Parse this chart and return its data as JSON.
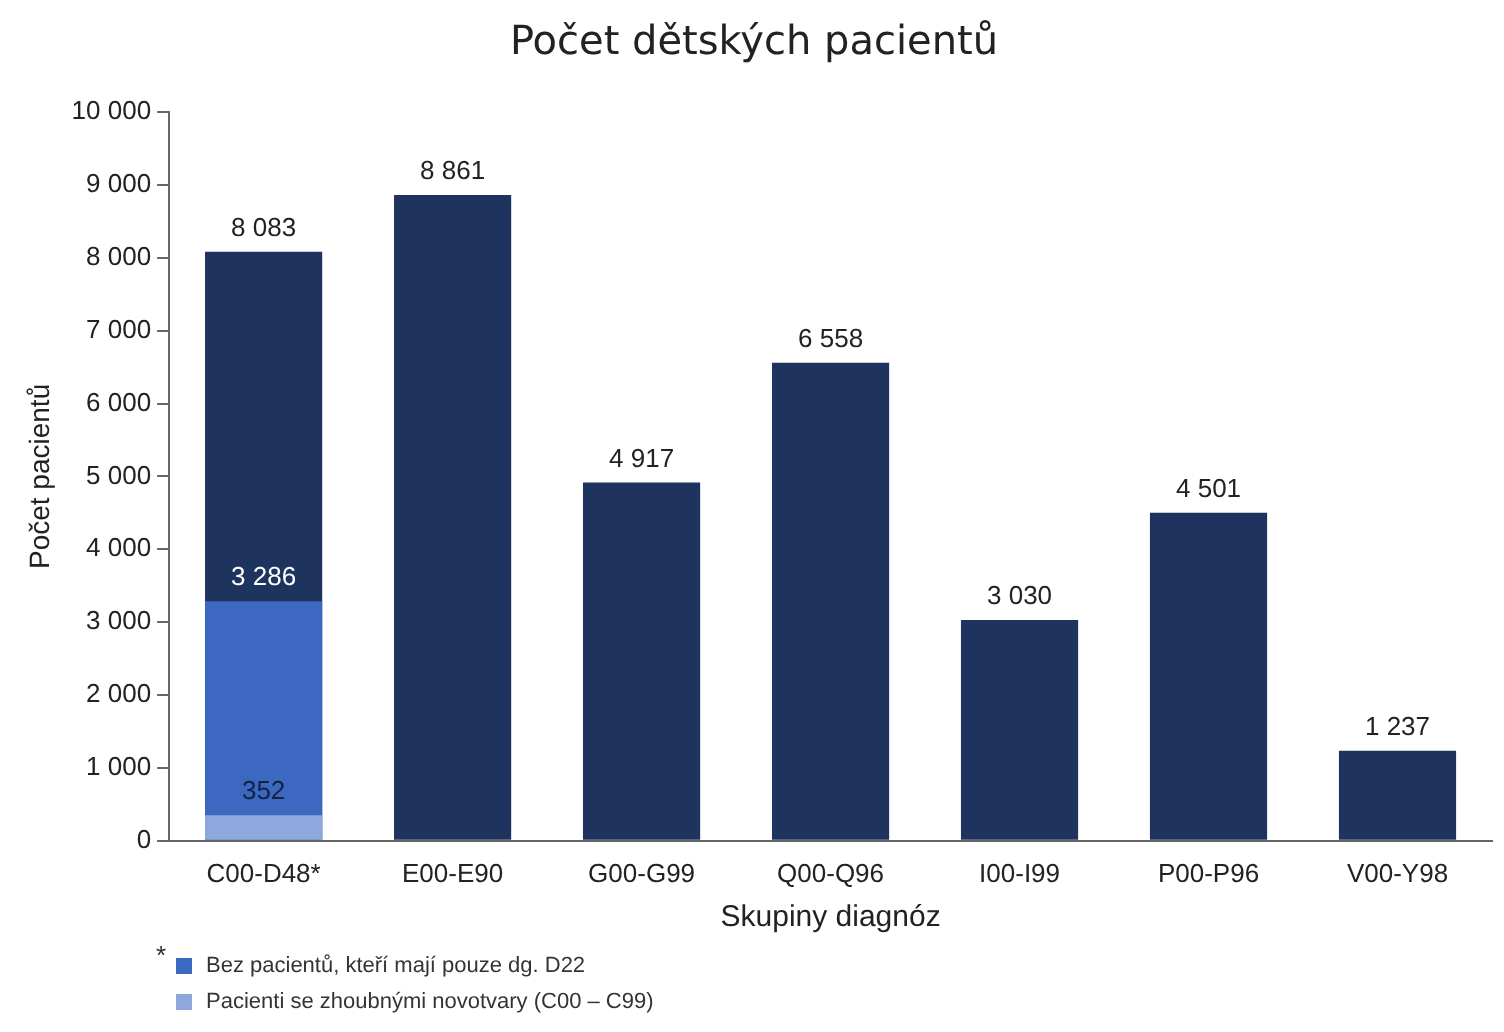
{
  "chart_data": {
    "type": "bar",
    "title": "Počet dětských pacientů",
    "xlabel": "Skupiny diagnóz",
    "ylabel": "Počet pacientů",
    "categories": [
      "C00-D48*",
      "E00-E90",
      "G00-G99",
      "Q00-Q96",
      "I00-I99",
      "P00-P96",
      "V00-Y98"
    ],
    "series": [
      {
        "name": "Pacienti se zhoubnými novotvary (C00 – C99)",
        "color": "#8ea8de",
        "values": [
          352,
          null,
          null,
          null,
          null,
          null,
          null
        ],
        "value_labels": [
          "352",
          null,
          null,
          null,
          null,
          null,
          null
        ]
      },
      {
        "name": "Bez pacientů, kteří mají pouze dg. D22",
        "color": "#3d68c1",
        "values": [
          3286,
          null,
          null,
          null,
          null,
          null,
          null
        ],
        "value_labels": [
          "3 286",
          null,
          null,
          null,
          null,
          null,
          null
        ]
      },
      {
        "color": "#1f335f",
        "values": [
          8083,
          8861,
          4917,
          6558,
          3030,
          4501,
          1237
        ],
        "value_labels": [
          "8 083",
          "8 861",
          "4 917",
          "6 558",
          "3 030",
          "4 501",
          "1 237"
        ]
      }
    ],
    "ylim": [
      0,
      10000
    ],
    "yticks": [
      {
        "value": 0,
        "label": "0"
      },
      {
        "value": 1000,
        "label": "1 000"
      },
      {
        "value": 2000,
        "label": "2 000"
      },
      {
        "value": 3000,
        "label": "3 000"
      },
      {
        "value": 4000,
        "label": "4 000"
      },
      {
        "value": 5000,
        "label": "5 000"
      },
      {
        "value": 6000,
        "label": "6 000"
      },
      {
        "value": 7000,
        "label": "7 000"
      },
      {
        "value": 8000,
        "label": "8 000"
      },
      {
        "value": 9000,
        "label": "9 000"
      },
      {
        "value": 10000,
        "label": "10 000"
      }
    ],
    "grid": false,
    "legend": "bottom left",
    "annotations": [
      "*"
    ]
  }
}
